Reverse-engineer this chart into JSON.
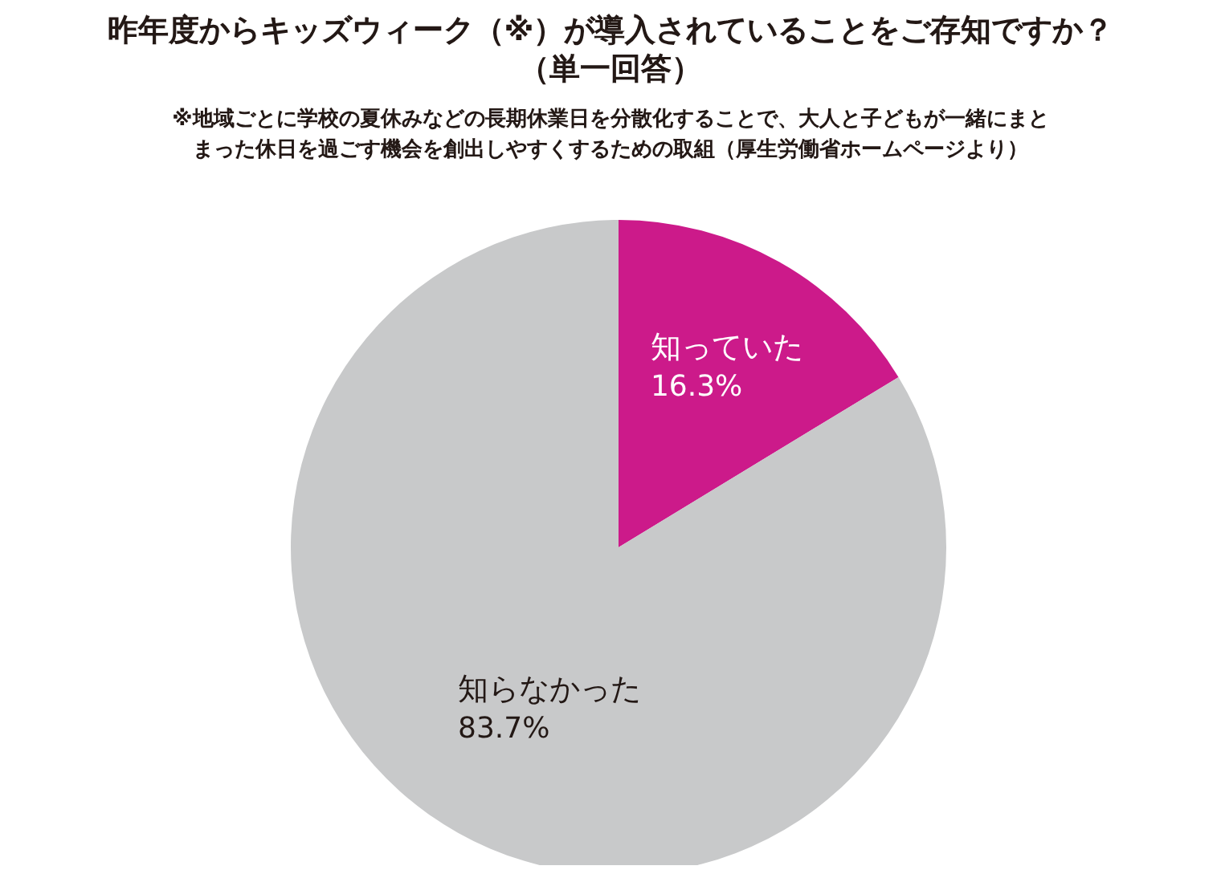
{
  "chart_data": {
    "type": "pie",
    "title": "昨年度からキッズウィーク（※）が導入されていることをご存知ですか？（単一回答）",
    "subtitle": "※地域ごとに学校の夏休みなどの長期休業日を分散化することで、大人と子どもが一緒にまとまった休日を過ごす機会を創出しやすくするための取組（厚生労働省ホームページより）",
    "categories": [
      "知っていた",
      "知らなかった"
    ],
    "values": [
      16.3,
      83.7
    ],
    "colors": [
      "#cc1a8a",
      "#c8c9ca"
    ],
    "value_labels": [
      "16.3%",
      "83.7%"
    ]
  }
}
